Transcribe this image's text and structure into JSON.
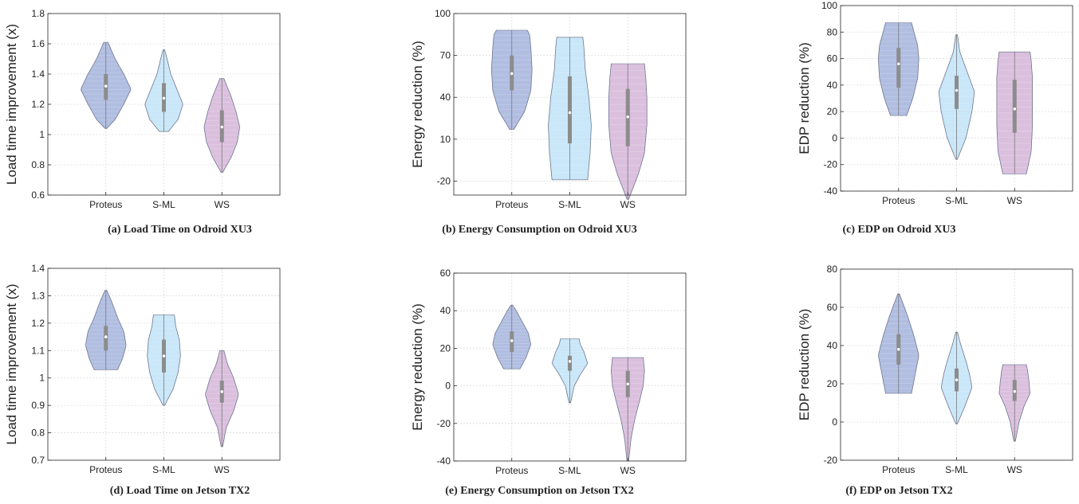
{
  "chart_data": [
    {
      "id": "a",
      "type": "violin",
      "caption": "(a) Load Time on Odroid XU3",
      "ylabel": "Load time improvement (x)",
      "categories": [
        "Proteus",
        "S-ML",
        "WS"
      ],
      "ylim": [
        0.6,
        1.8
      ],
      "yticks": [
        "0.6",
        "0.8",
        "1",
        "1.2",
        "1.4",
        "1.6",
        "1.8"
      ],
      "grid": true,
      "series": [
        {
          "category": "Proteus",
          "min": 1.04,
          "q1": 1.23,
          "median": 1.32,
          "q3": 1.4,
          "max": 1.61,
          "color": "#a3b3dc",
          "width_profile": [
            [
              1.04,
              0.0
            ],
            [
              1.1,
              0.35
            ],
            [
              1.2,
              0.7
            ],
            [
              1.3,
              1.0
            ],
            [
              1.4,
              0.7
            ],
            [
              1.5,
              0.35
            ],
            [
              1.61,
              0.05
            ]
          ]
        },
        {
          "category": "S-ML",
          "min": 1.02,
          "q1": 1.15,
          "median": 1.24,
          "q3": 1.34,
          "max": 1.56,
          "color": "#bfe3f7",
          "width_profile": [
            [
              1.02,
              0.15
            ],
            [
              1.1,
              0.55
            ],
            [
              1.2,
              0.75
            ],
            [
              1.3,
              0.5
            ],
            [
              1.4,
              0.25
            ],
            [
              1.5,
              0.1
            ],
            [
              1.56,
              0.0
            ]
          ]
        },
        {
          "category": "WS",
          "min": 0.75,
          "q1": 0.95,
          "median": 1.05,
          "q3": 1.16,
          "max": 1.37,
          "color": "#d5b5d8",
          "width_profile": [
            [
              0.75,
              0.0
            ],
            [
              0.85,
              0.35
            ],
            [
              0.95,
              0.6
            ],
            [
              1.05,
              0.7
            ],
            [
              1.15,
              0.55
            ],
            [
              1.25,
              0.35
            ],
            [
              1.37,
              0.05
            ]
          ]
        }
      ]
    },
    {
      "id": "b",
      "type": "violin",
      "caption": "(b) Energy Consumption on Odroid XU3",
      "ylabel": "Energy reduction (%)",
      "categories": [
        "Proteus",
        "S-ML",
        "WS"
      ],
      "ylim": [
        -30,
        100
      ],
      "yticks": [
        "-20",
        "10",
        "40",
        "70",
        "100"
      ],
      "grid": true,
      "series": [
        {
          "category": "Proteus",
          "min": 17,
          "q1": 45,
          "median": 57,
          "q3": 70,
          "max": 88,
          "color": "#a3b3dc",
          "width_profile": [
            [
              17,
              0.05
            ],
            [
              30,
              0.5
            ],
            [
              45,
              0.75
            ],
            [
              60,
              0.8
            ],
            [
              75,
              0.75
            ],
            [
              85,
              0.7
            ],
            [
              88,
              0.6
            ]
          ]
        },
        {
          "category": "S-ML",
          "min": -19,
          "q1": 7,
          "median": 29,
          "q3": 55,
          "max": 83,
          "color": "#bfe3f7",
          "width_profile": [
            [
              -19,
              0.7
            ],
            [
              0,
              0.8
            ],
            [
              20,
              0.85
            ],
            [
              40,
              0.75
            ],
            [
              60,
              0.6
            ],
            [
              75,
              0.55
            ],
            [
              83,
              0.5
            ]
          ]
        },
        {
          "category": "WS",
          "min": -33,
          "q1": 5,
          "median": 26,
          "q3": 46,
          "max": 64,
          "color": "#d5b5d8",
          "width_profile": [
            [
              -33,
              0.0
            ],
            [
              -15,
              0.4
            ],
            [
              0,
              0.65
            ],
            [
              20,
              0.75
            ],
            [
              40,
              0.75
            ],
            [
              55,
              0.7
            ],
            [
              64,
              0.65
            ]
          ]
        }
      ]
    },
    {
      "id": "c",
      "type": "violin",
      "caption": "(c) EDP on Odroid XU3",
      "ylabel": "EDP reduction (%)",
      "categories": [
        "Proteus",
        "S-ML",
        "WS"
      ],
      "ylim": [
        -40,
        100
      ],
      "yticks": [
        "-40",
        "-20",
        "0",
        "20",
        "40",
        "60",
        "80",
        "100"
      ],
      "grid": true,
      "series": [
        {
          "category": "Proteus",
          "min": 17,
          "q1": 38,
          "median": 56,
          "q3": 68,
          "max": 87,
          "color": "#a3b3dc",
          "width_profile": [
            [
              17,
              0.3
            ],
            [
              30,
              0.55
            ],
            [
              45,
              0.75
            ],
            [
              60,
              0.8
            ],
            [
              70,
              0.75
            ],
            [
              80,
              0.6
            ],
            [
              87,
              0.5
            ]
          ]
        },
        {
          "category": "S-ML",
          "min": -16,
          "q1": 22,
          "median": 36,
          "q3": 47,
          "max": 78,
          "color": "#bfe3f7",
          "width_profile": [
            [
              -16,
              0.0
            ],
            [
              0,
              0.35
            ],
            [
              20,
              0.6
            ],
            [
              35,
              0.7
            ],
            [
              50,
              0.4
            ],
            [
              65,
              0.1
            ],
            [
              78,
              0.0
            ]
          ]
        },
        {
          "category": "WS",
          "min": -27,
          "q1": 4,
          "median": 22,
          "q3": 44,
          "max": 65,
          "color": "#d5b5d8",
          "width_profile": [
            [
              -27,
              0.45
            ],
            [
              -10,
              0.65
            ],
            [
              10,
              0.7
            ],
            [
              30,
              0.7
            ],
            [
              45,
              0.7
            ],
            [
              58,
              0.65
            ],
            [
              65,
              0.6
            ]
          ]
        }
      ]
    },
    {
      "id": "d",
      "type": "violin",
      "caption": "(d) Load Time on Jetson TX2",
      "ylabel": "Load time improvement (x)",
      "categories": [
        "Proteus",
        "S-ML",
        "WS"
      ],
      "ylim": [
        0.7,
        1.4
      ],
      "yticks": [
        "0.7",
        "0.8",
        "0.9",
        "1",
        "1.1",
        "1.2",
        "1.3",
        "1.4"
      ],
      "grid": true,
      "series": [
        {
          "category": "Proteus",
          "min": 1.03,
          "q1": 1.1,
          "median": 1.15,
          "q3": 1.19,
          "max": 1.32,
          "color": "#a3b3dc",
          "width_profile": [
            [
              1.03,
              0.45
            ],
            [
              1.07,
              0.65
            ],
            [
              1.12,
              0.8
            ],
            [
              1.17,
              0.7
            ],
            [
              1.22,
              0.45
            ],
            [
              1.28,
              0.2
            ],
            [
              1.32,
              0.0
            ]
          ]
        },
        {
          "category": "S-ML",
          "min": 0.9,
          "q1": 1.02,
          "median": 1.08,
          "q3": 1.14,
          "max": 1.23,
          "color": "#bfe3f7",
          "width_profile": [
            [
              0.9,
              0.0
            ],
            [
              0.96,
              0.35
            ],
            [
              1.02,
              0.55
            ],
            [
              1.08,
              0.65
            ],
            [
              1.14,
              0.6
            ],
            [
              1.19,
              0.45
            ],
            [
              1.23,
              0.4
            ]
          ]
        },
        {
          "category": "WS",
          "min": 0.75,
          "q1": 0.91,
          "median": 0.95,
          "q3": 0.99,
          "max": 1.1,
          "color": "#d5b5d8",
          "width_profile": [
            [
              0.75,
              0.0
            ],
            [
              0.82,
              0.15
            ],
            [
              0.88,
              0.45
            ],
            [
              0.94,
              0.65
            ],
            [
              1.0,
              0.45
            ],
            [
              1.05,
              0.2
            ],
            [
              1.1,
              0.05
            ]
          ]
        }
      ]
    },
    {
      "id": "e",
      "type": "violin",
      "caption": "(e) Energy Consumption on Jetson TX2",
      "ylabel": "Energy reduction (%)",
      "categories": [
        "Proteus",
        "S-ML",
        "WS"
      ],
      "ylim": [
        -40,
        60
      ],
      "yticks": [
        "-40",
        "-20",
        "0",
        "20",
        "40",
        "60"
      ],
      "grid": true,
      "series": [
        {
          "category": "Proteus",
          "min": 9,
          "q1": 18,
          "median": 24,
          "q3": 29,
          "max": 43,
          "color": "#a3b3dc",
          "width_profile": [
            [
              9,
              0.3
            ],
            [
              15,
              0.55
            ],
            [
              22,
              0.75
            ],
            [
              28,
              0.65
            ],
            [
              34,
              0.4
            ],
            [
              40,
              0.15
            ],
            [
              43,
              0.0
            ]
          ]
        },
        {
          "category": "S-ML",
          "min": -9,
          "q1": 8,
          "median": 13,
          "q3": 16,
          "max": 25,
          "color": "#bfe3f7",
          "width_profile": [
            [
              -9,
              0.0
            ],
            [
              0,
              0.15
            ],
            [
              6,
              0.4
            ],
            [
              12,
              0.7
            ],
            [
              18,
              0.55
            ],
            [
              22,
              0.4
            ],
            [
              25,
              0.35
            ]
          ]
        },
        {
          "category": "WS",
          "min": -40,
          "q1": -6,
          "median": 1,
          "q3": 8,
          "max": 15,
          "color": "#d5b5d8",
          "width_profile": [
            [
              -40,
              0.0
            ],
            [
              -28,
              0.1
            ],
            [
              -18,
              0.25
            ],
            [
              -8,
              0.45
            ],
            [
              0,
              0.6
            ],
            [
              8,
              0.65
            ],
            [
              15,
              0.6
            ]
          ]
        }
      ]
    },
    {
      "id": "f",
      "type": "violin",
      "caption": "(f) EDP on Jetson TX2",
      "ylabel": "EDP reduction (%)",
      "categories": [
        "Proteus",
        "S-ML",
        "WS"
      ],
      "ylim": [
        -20,
        80
      ],
      "yticks": [
        "-20",
        "0",
        "20",
        "40",
        "60",
        "80"
      ],
      "grid": true,
      "series": [
        {
          "category": "Proteus",
          "min": 15,
          "q1": 30,
          "median": 38,
          "q3": 46,
          "max": 67,
          "color": "#a3b3dc",
          "width_profile": [
            [
              15,
              0.5
            ],
            [
              25,
              0.65
            ],
            [
              35,
              0.8
            ],
            [
              45,
              0.6
            ],
            [
              55,
              0.35
            ],
            [
              62,
              0.15
            ],
            [
              67,
              0.0
            ]
          ]
        },
        {
          "category": "S-ML",
          "min": -1,
          "q1": 16,
          "median": 22,
          "q3": 28,
          "max": 47,
          "color": "#bfe3f7",
          "width_profile": [
            [
              -1,
              0.0
            ],
            [
              8,
              0.3
            ],
            [
              18,
              0.6
            ],
            [
              25,
              0.5
            ],
            [
              32,
              0.35
            ],
            [
              40,
              0.15
            ],
            [
              47,
              0.0
            ]
          ]
        },
        {
          "category": "WS",
          "min": -10,
          "q1": 11,
          "median": 16,
          "q3": 22,
          "max": 30,
          "color": "#d5b5d8",
          "width_profile": [
            [
              -10,
              0.0
            ],
            [
              0,
              0.15
            ],
            [
              8,
              0.35
            ],
            [
              15,
              0.6
            ],
            [
              22,
              0.55
            ],
            [
              27,
              0.5
            ],
            [
              30,
              0.45
            ]
          ]
        }
      ]
    }
  ]
}
